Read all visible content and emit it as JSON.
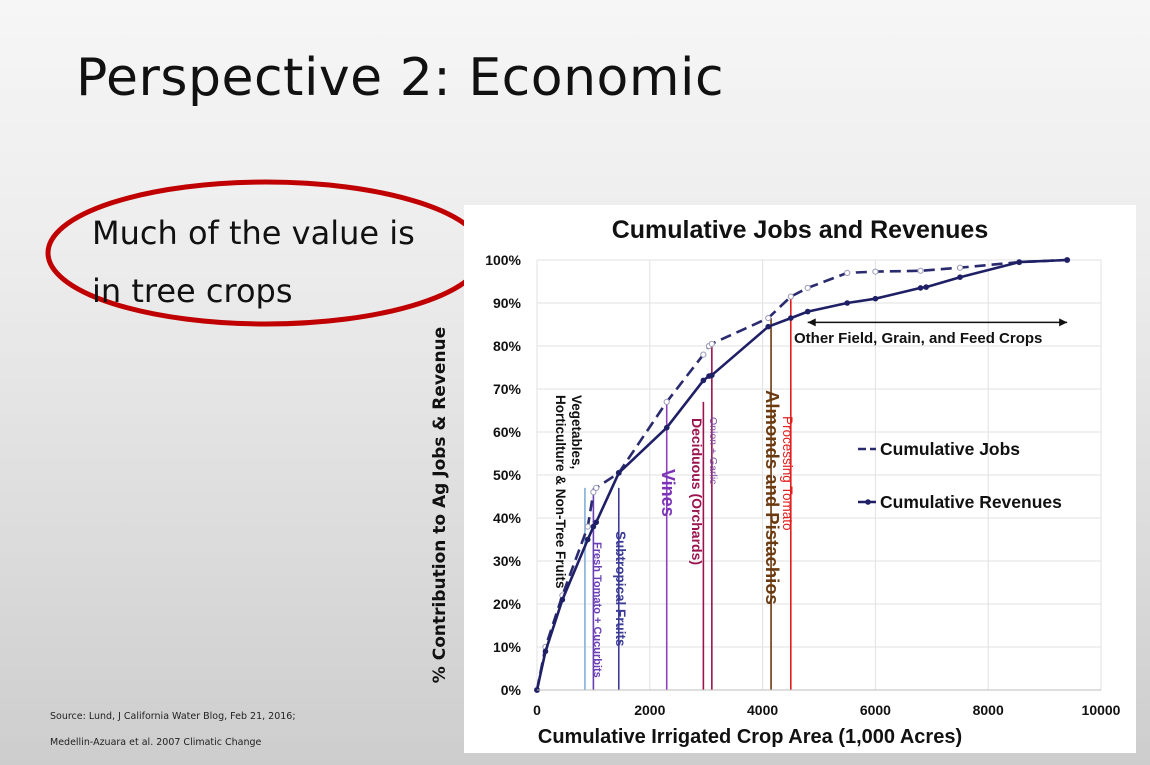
{
  "slide": {
    "title": "Perspective 2: Economic",
    "bullet_lines": [
      "Much of the value is",
      "in tree crops"
    ],
    "highlight_color": "#c00000",
    "sources": [
      "Source: Lund, J California Water Blog, Feb 21, 2016;",
      "Medellin-Azuara et al. 2007 Climatic Change"
    ]
  },
  "chart_data": {
    "type": "line",
    "title": "Cumulative Jobs and Revenues",
    "xlabel": "Cumulative Irrigated Crop Area (1,000 Acres)",
    "ylabel": "% Contribution to Ag Jobs & Revenue",
    "xlim": [
      0,
      10000
    ],
    "ylim": [
      0,
      100
    ],
    "x_ticks": [
      "0",
      "2000",
      "4000",
      "6000",
      "8000",
      "10000"
    ],
    "y_ticks": [
      "0%",
      "10%",
      "20%",
      "30%",
      "40%",
      "50%",
      "60%",
      "70%",
      "80%",
      "90%",
      "100%"
    ],
    "grid": true,
    "legend_placement": "right",
    "series": [
      {
        "name": "Cumulative Jobs",
        "style": "dashed",
        "color": "#2a2a6e",
        "points": [
          [
            0,
            0
          ],
          [
            150,
            10
          ],
          [
            450,
            22
          ],
          [
            900,
            38
          ],
          [
            1000,
            46
          ],
          [
            1050,
            47
          ],
          [
            1450,
            50.5
          ],
          [
            2300,
            67
          ],
          [
            2950,
            78
          ],
          [
            3050,
            80
          ],
          [
            3100,
            80.5
          ],
          [
            4100,
            86.5
          ],
          [
            4500,
            91.5
          ],
          [
            4800,
            93.5
          ],
          [
            5500,
            97
          ],
          [
            6000,
            97.3
          ],
          [
            6800,
            97.5
          ],
          [
            7500,
            98.2
          ],
          [
            8550,
            99.5
          ],
          [
            9400,
            100
          ]
        ]
      },
      {
        "name": "Cumulative Revenues",
        "style": "solid",
        "color": "#1f1f66",
        "points": [
          [
            0,
            0
          ],
          [
            150,
            9
          ],
          [
            450,
            21
          ],
          [
            900,
            35
          ],
          [
            1000,
            38
          ],
          [
            1050,
            39
          ],
          [
            1450,
            50.5
          ],
          [
            2300,
            61
          ],
          [
            2950,
            72
          ],
          [
            3050,
            73
          ],
          [
            3100,
            73.2
          ],
          [
            4100,
            84.5
          ],
          [
            4500,
            86.5
          ],
          [
            4800,
            88
          ],
          [
            5500,
            90
          ],
          [
            6000,
            91
          ],
          [
            6800,
            93.5
          ],
          [
            6900,
            93.7
          ],
          [
            7500,
            96
          ],
          [
            8550,
            99.5
          ],
          [
            9400,
            100
          ]
        ]
      }
    ],
    "annotations": [
      {
        "text": "Vegetables,",
        "color": "#111111"
      },
      {
        "text": "Horticulture & Non-Tree Fruits",
        "color": "#111111"
      },
      {
        "text": "Fresh Tomato + Cucurbits",
        "color": "#6a3fb5"
      },
      {
        "text": "Subtropical Fruits",
        "color": "#3c3c96"
      },
      {
        "text": "Vines",
        "color": "#7b33b8"
      },
      {
        "text": "Onion + Garlic",
        "color": "#7b4aa8"
      },
      {
        "text": "Deciduous (Orchards)",
        "color": "#9b1450"
      },
      {
        "text": "Almonds and Pistachios",
        "color": "#6b3a10"
      },
      {
        "text": "Processing Tomato",
        "color": "#e31e1e"
      },
      {
        "text": "Other Field, Grain, and Feed Crops",
        "color": "#111111"
      }
    ],
    "dividers": [
      {
        "x": 850,
        "color": "#7fb0d8"
      },
      {
        "x": 1000,
        "color": "#6a3fb5"
      },
      {
        "x": 1450,
        "color": "#3c3c96"
      },
      {
        "x": 2300,
        "color": "#8e44c0"
      },
      {
        "x": 2950,
        "color": "#9b1450"
      },
      {
        "x": 3100,
        "color": "#9b1450"
      },
      {
        "x": 4150,
        "color": "#6b3a10"
      },
      {
        "x": 4500,
        "color": "#e31e1e"
      }
    ],
    "other_crops_range": [
      4800,
      9400
    ]
  }
}
